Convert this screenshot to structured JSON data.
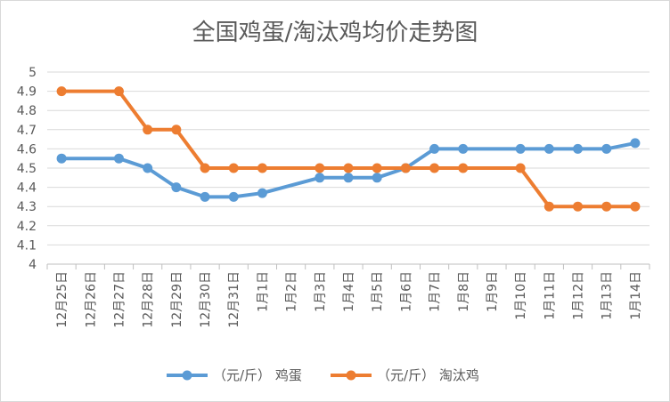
{
  "chart_data": {
    "type": "line",
    "title": "全国鸡蛋/淘汰鸡均价走势图",
    "xlabel": "",
    "ylabel": "",
    "categories": [
      "12月25日",
      "12月26日",
      "12月27日",
      "12月28日",
      "12月29日",
      "12月30日",
      "12月31日",
      "1月1日",
      "1月2日",
      "1月3日",
      "1月4日",
      "1月5日",
      "1月6日",
      "1月7日",
      "1月8日",
      "1月9日",
      "1月10日",
      "1月11日",
      "1月12日",
      "1月13日",
      "1月14日"
    ],
    "ylim": [
      4,
      5
    ],
    "yticks": [
      "4",
      "4.1",
      "4.2",
      "4.3",
      "4.4",
      "4.5",
      "4.6",
      "4.7",
      "4.8",
      "4.9",
      "5"
    ],
    "grid": true,
    "legend_position": "bottom",
    "series": [
      {
        "name": "（元/斤） 鸡蛋",
        "color": "#5b9bd5",
        "values": [
          4.55,
          null,
          4.55,
          4.5,
          4.4,
          4.35,
          4.35,
          4.37,
          null,
          4.45,
          4.45,
          4.45,
          4.5,
          4.6,
          4.6,
          null,
          4.6,
          4.6,
          4.6,
          4.6,
          4.63
        ]
      },
      {
        "name": "（元/斤） 淘汰鸡",
        "color": "#ed7d31",
        "values": [
          4.9,
          null,
          4.9,
          4.7,
          4.7,
          4.5,
          4.5,
          4.5,
          null,
          4.5,
          4.5,
          4.5,
          4.5,
          4.5,
          4.5,
          null,
          4.5,
          4.3,
          4.3,
          4.3,
          4.3
        ]
      }
    ]
  }
}
